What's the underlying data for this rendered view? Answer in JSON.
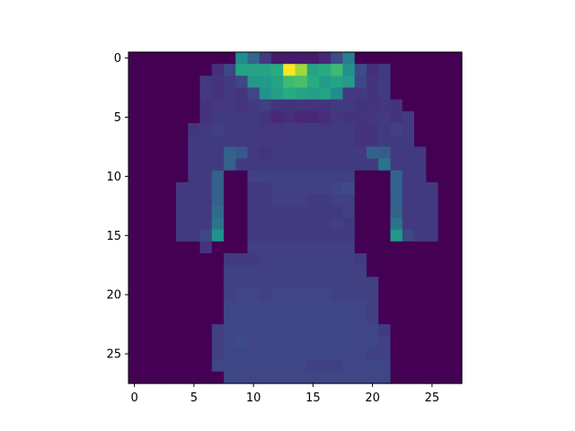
{
  "chart_data": {
    "type": "heatmap",
    "colormap": "viridis",
    "rows": 28,
    "cols": 28,
    "xlim": [
      -0.5,
      27.5
    ],
    "ylim": [
      27.5,
      -0.5
    ],
    "y_axis_inverted": true,
    "grid": false,
    "legend": "none",
    "x_ticks": [
      0,
      5,
      10,
      15,
      20,
      25
    ],
    "y_ticks": [
      0,
      5,
      10,
      15,
      20,
      25
    ],
    "value_range": [
      0,
      255
    ],
    "values": [
      [
        0,
        0,
        0,
        0,
        0,
        0,
        0,
        0,
        0,
        125,
        85,
        45,
        20,
        20,
        20,
        20,
        30,
        60,
        110,
        0,
        0,
        0,
        0,
        0,
        0,
        0,
        0,
        0
      ],
      [
        0,
        0,
        0,
        0,
        0,
        0,
        0,
        35,
        55,
        150,
        150,
        150,
        160,
        255,
        220,
        150,
        160,
        175,
        130,
        60,
        35,
        45,
        0,
        0,
        0,
        0,
        0,
        0
      ],
      [
        0,
        0,
        0,
        0,
        0,
        0,
        45,
        40,
        45,
        55,
        135,
        140,
        150,
        175,
        180,
        160,
        140,
        150,
        140,
        55,
        40,
        45,
        0,
        0,
        0,
        0,
        0,
        0
      ],
      [
        0,
        0,
        0,
        0,
        0,
        0,
        45,
        40,
        45,
        40,
        55,
        130,
        145,
        160,
        150,
        145,
        150,
        125,
        45,
        45,
        40,
        45,
        0,
        0,
        0,
        0,
        0,
        0
      ],
      [
        0,
        0,
        0,
        0,
        0,
        0,
        40,
        42,
        42,
        40,
        45,
        50,
        40,
        40,
        40,
        40,
        40,
        45,
        45,
        40,
        40,
        42,
        40,
        0,
        0,
        0,
        0,
        0
      ],
      [
        0,
        0,
        0,
        0,
        0,
        0,
        40,
        45,
        45,
        45,
        45,
        40,
        30,
        35,
        30,
        30,
        35,
        42,
        40,
        40,
        42,
        45,
        40,
        45,
        0,
        0,
        0,
        0
      ],
      [
        0,
        0,
        0,
        0,
        0,
        40,
        45,
        50,
        45,
        45,
        45,
        42,
        42,
        45,
        42,
        45,
        42,
        45,
        45,
        40,
        40,
        45,
        50,
        45,
        0,
        0,
        0,
        0
      ],
      [
        0,
        0,
        0,
        0,
        0,
        45,
        45,
        45,
        45,
        45,
        45,
        45,
        45,
        45,
        45,
        45,
        45,
        45,
        45,
        40,
        40,
        45,
        45,
        45,
        0,
        0,
        0,
        0
      ],
      [
        0,
        0,
        0,
        0,
        0,
        45,
        45,
        45,
        80,
        70,
        45,
        40,
        45,
        45,
        45,
        45,
        45,
        45,
        45,
        45,
        80,
        75,
        45,
        45,
        45,
        0,
        0,
        0
      ],
      [
        0,
        0,
        0,
        0,
        0,
        45,
        45,
        45,
        80,
        45,
        45,
        45,
        45,
        45,
        45,
        45,
        45,
        45,
        45,
        45,
        45,
        100,
        45,
        45,
        45,
        0,
        0,
        0
      ],
      [
        0,
        0,
        0,
        0,
        0,
        45,
        45,
        80,
        0,
        0,
        50,
        50,
        50,
        50,
        50,
        50,
        50,
        50,
        50,
        0,
        0,
        0,
        80,
        45,
        45,
        0,
        0,
        0
      ],
      [
        0,
        0,
        0,
        0,
        45,
        45,
        45,
        80,
        0,
        0,
        45,
        45,
        50,
        50,
        50,
        50,
        50,
        55,
        60,
        0,
        0,
        0,
        80,
        45,
        45,
        45,
        0,
        0
      ],
      [
        0,
        0,
        0,
        0,
        45,
        45,
        45,
        80,
        0,
        0,
        45,
        45,
        50,
        50,
        50,
        45,
        45,
        50,
        50,
        0,
        0,
        0,
        80,
        45,
        45,
        45,
        0,
        0
      ],
      [
        0,
        0,
        0,
        0,
        45,
        45,
        45,
        90,
        0,
        0,
        45,
        45,
        45,
        45,
        45,
        45,
        45,
        45,
        50,
        0,
        0,
        0,
        80,
        45,
        45,
        45,
        0,
        0
      ],
      [
        0,
        0,
        0,
        0,
        45,
        45,
        45,
        100,
        0,
        0,
        45,
        45,
        45,
        45,
        45,
        45,
        45,
        50,
        45,
        0,
        0,
        0,
        100,
        45,
        45,
        45,
        0,
        0
      ],
      [
        0,
        0,
        0,
        0,
        45,
        45,
        55,
        130,
        0,
        0,
        45,
        45,
        45,
        45,
        45,
        45,
        45,
        45,
        45,
        0,
        0,
        0,
        135,
        55,
        45,
        45,
        0,
        0
      ],
      [
        0,
        0,
        0,
        0,
        0,
        0,
        40,
        0,
        0,
        0,
        50,
        50,
        50,
        50,
        50,
        50,
        50,
        50,
        50,
        0,
        0,
        0,
        0,
        0,
        0,
        0,
        0,
        0
      ],
      [
        0,
        0,
        0,
        0,
        0,
        0,
        0,
        0,
        45,
        45,
        45,
        50,
        50,
        50,
        50,
        50,
        50,
        50,
        50,
        45,
        0,
        0,
        0,
        0,
        0,
        0,
        0,
        0
      ],
      [
        0,
        0,
        0,
        0,
        0,
        0,
        0,
        0,
        50,
        50,
        50,
        50,
        50,
        50,
        50,
        50,
        50,
        50,
        50,
        50,
        0,
        0,
        0,
        0,
        0,
        0,
        0,
        0
      ],
      [
        0,
        0,
        0,
        0,
        0,
        0,
        0,
        0,
        50,
        50,
        50,
        50,
        50,
        50,
        50,
        50,
        50,
        50,
        50,
        50,
        50,
        0,
        0,
        0,
        0,
        0,
        0,
        0
      ],
      [
        0,
        0,
        0,
        0,
        0,
        0,
        0,
        0,
        50,
        55,
        55,
        50,
        55,
        55,
        55,
        55,
        55,
        50,
        50,
        50,
        50,
        0,
        0,
        0,
        0,
        0,
        0,
        0
      ],
      [
        0,
        0,
        0,
        0,
        0,
        0,
        0,
        0,
        55,
        55,
        55,
        55,
        55,
        55,
        55,
        55,
        55,
        55,
        55,
        55,
        50,
        0,
        0,
        0,
        0,
        0,
        0,
        0
      ],
      [
        0,
        0,
        0,
        0,
        0,
        0,
        0,
        0,
        55,
        55,
        55,
        55,
        55,
        55,
        55,
        55,
        55,
        55,
        55,
        55,
        50,
        0,
        0,
        0,
        0,
        0,
        0,
        0
      ],
      [
        0,
        0,
        0,
        0,
        0,
        0,
        0,
        50,
        55,
        55,
        55,
        55,
        55,
        55,
        55,
        55,
        55,
        55,
        55,
        55,
        55,
        45,
        0,
        0,
        0,
        0,
        0,
        0
      ],
      [
        0,
        0,
        0,
        0,
        0,
        0,
        0,
        50,
        55,
        60,
        55,
        55,
        55,
        55,
        55,
        55,
        55,
        55,
        55,
        55,
        55,
        50,
        0,
        0,
        0,
        0,
        0,
        0
      ],
      [
        0,
        0,
        0,
        0,
        0,
        0,
        0,
        50,
        55,
        55,
        55,
        55,
        55,
        55,
        55,
        55,
        55,
        55,
        55,
        55,
        50,
        50,
        0,
        0,
        0,
        0,
        0,
        0
      ],
      [
        0,
        0,
        0,
        0,
        0,
        0,
        0,
        55,
        55,
        55,
        55,
        55,
        55,
        55,
        55,
        50,
        50,
        50,
        55,
        55,
        55,
        55,
        0,
        0,
        0,
        0,
        0,
        0
      ],
      [
        0,
        0,
        0,
        0,
        0,
        0,
        0,
        0,
        55,
        55,
        55,
        55,
        55,
        55,
        55,
        55,
        55,
        55,
        55,
        55,
        55,
        55,
        0,
        0,
        0,
        0,
        0,
        0
      ]
    ]
  }
}
